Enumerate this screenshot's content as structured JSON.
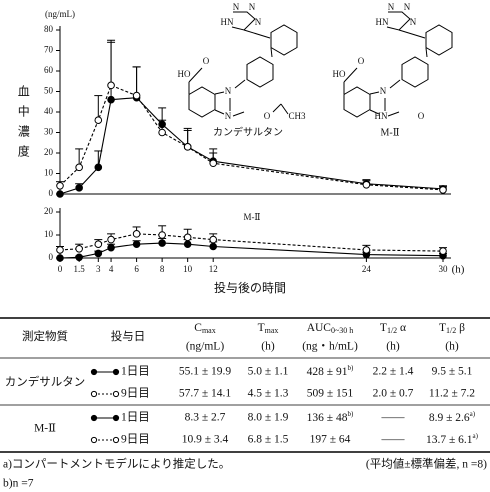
{
  "chart_data": [
    {
      "type": "line",
      "y_unit": "(ng/mL)",
      "ylabel": "血中濃度",
      "x": [
        0,
        1.5,
        3,
        4,
        6,
        8,
        10,
        12,
        24,
        30
      ],
      "xlim": [
        0,
        30
      ],
      "ylim": [
        0,
        80
      ],
      "yticks": [
        0,
        10,
        20,
        30,
        40,
        50,
        60,
        70,
        80
      ],
      "series": [
        {
          "color": "#000000",
          "marker": "filled",
          "dashed": false,
          "values": [
            0,
            3,
            13,
            46,
            47,
            34,
            23,
            16,
            5,
            2.5
          ],
          "errors": [
            0,
            2,
            8,
            28,
            15,
            8,
            8,
            6,
            2,
            1.5
          ]
        },
        {
          "color": "#000000",
          "marker": "open",
          "dashed": true,
          "values": [
            4,
            13,
            36,
            53,
            48,
            30,
            23,
            15,
            4.5,
            2
          ],
          "errors": [
            2,
            9,
            12,
            22,
            14,
            6,
            9,
            5,
            2,
            1.5
          ]
        }
      ]
    },
    {
      "type": "line",
      "annotation": "M-Ⅱ",
      "xlabel": "投与後の時間",
      "x_unit": "(h)",
      "x": [
        0,
        1.5,
        3,
        4,
        6,
        8,
        10,
        12,
        24,
        30
      ],
      "xlim": [
        0,
        30
      ],
      "xticks": [
        0,
        1.5,
        3,
        4,
        6,
        8,
        10,
        12,
        24,
        30
      ],
      "ylim": [
        0,
        20
      ],
      "yticks": [
        0,
        10,
        20
      ],
      "series": [
        {
          "color": "#000000",
          "marker": "filled",
          "dashed": false,
          "values": [
            0,
            0.3,
            2,
            4.5,
            6,
            6.5,
            6,
            5,
            1.5,
            1
          ],
          "errors": [
            0,
            0.5,
            1,
            1.5,
            1.5,
            2,
            2,
            2,
            1,
            1
          ]
        },
        {
          "color": "#000000",
          "marker": "open",
          "dashed": true,
          "values": [
            3.5,
            4,
            6,
            8,
            10.5,
            10,
            9,
            8,
            3.5,
            3
          ],
          "errors": [
            1.5,
            2,
            2,
            2.5,
            3,
            4,
            3.5,
            2.5,
            2,
            1.5
          ]
        }
      ]
    }
  ],
  "structures": [
    {
      "label": "カンデサルタン",
      "atoms": [
        "N",
        "N",
        "HN",
        "N",
        "HO",
        "O",
        "N",
        "N",
        "O",
        "CH3"
      ]
    },
    {
      "label": "M-Ⅱ",
      "atoms": [
        "N",
        "N",
        "HN",
        "N",
        "HO",
        "O",
        "N",
        "HN",
        "O"
      ]
    }
  ],
  "table": {
    "header": [
      {
        "main": "測定物質"
      },
      {
        "main": "投与日"
      },
      {
        "main": "C",
        "sub": "max",
        "unit": "(ng/mL)"
      },
      {
        "main": "T",
        "sub": "max",
        "unit": "(h)"
      },
      {
        "main": "AUC",
        "sub": "0~30 h",
        "unit": "(ng・h/mL)"
      },
      {
        "main": "T",
        "sub": "1/2",
        "tail": " α",
        "unit": "(h)"
      },
      {
        "main": "T",
        "sub": "1/2",
        "tail": " β",
        "unit": "(h)"
      }
    ],
    "groups": [
      {
        "name": "カンデサルタン",
        "rows": [
          {
            "day": "1日目",
            "cells": [
              "55.1 ± 19.9",
              "5.0 ± 1.1",
              {
                "text": "428 ± 91",
                "note": "b)"
              },
              "2.2 ± 1.4",
              "9.5 ± 5.1"
            ]
          },
          {
            "day": "9日目",
            "cells": [
              "57.7 ± 14.1",
              "4.5 ± 1.3",
              "509 ± 151",
              "2.0 ± 0.7",
              "11.2 ± 7.2"
            ]
          }
        ]
      },
      {
        "name": "M-Ⅱ",
        "rows": [
          {
            "day": "1日目",
            "cells": [
              "8.3 ± 2.7",
              "8.0 ± 1.9",
              {
                "text": "136 ± 48",
                "note": "b)"
              },
              "――",
              {
                "text": "8.9 ± 2.6",
                "note": "a)"
              }
            ]
          },
          {
            "day": "9日目",
            "cells": [
              "10.9 ± 3.4",
              "6.8 ± 1.5",
              "197 ± 64",
              "――",
              {
                "text": "13.7 ± 6.1",
                "note": "a)"
              }
            ]
          }
        ]
      }
    ]
  },
  "notes": [
    "a)コンパートメントモデルにより推定した。",
    "(平均値±標準偏差, n =8)",
    "b)n =7"
  ]
}
